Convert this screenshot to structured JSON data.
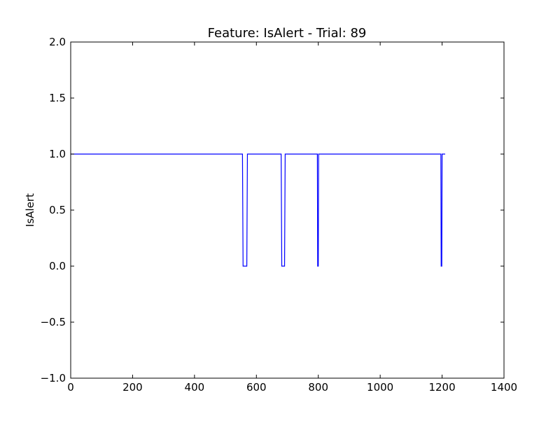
{
  "chart_data": {
    "type": "line",
    "title": "Feature: IsAlert - Trial: 89",
    "xlabel": "",
    "ylabel": "IsAlert",
    "xlim": [
      0,
      1400
    ],
    "ylim": [
      -1.0,
      2.0
    ],
    "grid": false,
    "x_ticks": [
      0,
      200,
      400,
      600,
      800,
      1000,
      1200,
      1400
    ],
    "x_tick_labels": [
      "0",
      "200",
      "400",
      "600",
      "800",
      "1000",
      "1200",
      "1400"
    ],
    "y_ticks": [
      -1.0,
      -0.5,
      0.0,
      0.5,
      1.0,
      1.5,
      2.0
    ],
    "y_tick_labels": [
      "−1.0",
      "−0.5",
      "0.0",
      "0.5",
      "1.0",
      "1.5",
      "2.0"
    ],
    "series": [
      {
        "color": "#0000ff",
        "x": [
          0,
          555,
          557,
          569,
          571,
          680,
          682,
          691,
          693,
          797,
          798,
          800,
          801,
          1196,
          1197,
          1199,
          1200,
          1210
        ],
        "y": [
          1,
          1,
          0,
          0,
          1,
          1,
          0,
          0,
          1,
          1,
          0,
          0,
          1,
          1,
          0,
          0,
          1,
          1
        ]
      }
    ]
  }
}
